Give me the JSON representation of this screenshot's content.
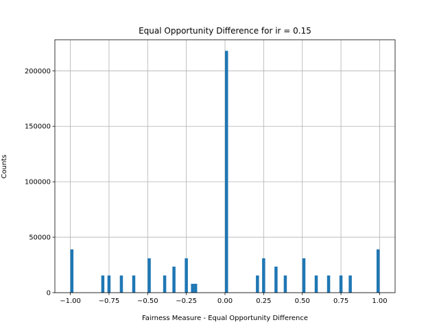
{
  "chart_data": {
    "type": "bar",
    "title": "Equal Opportunity Difference for ir = 0.15",
    "xlabel": "Fairness Measure - Equal Opportunity Difference",
    "ylabel": "Counts",
    "xlim": [
      -1.1,
      1.1
    ],
    "ylim": [
      0,
      228000
    ],
    "xticks": [
      -1.0,
      -0.75,
      -0.5,
      -0.25,
      0.0,
      0.25,
      0.5,
      0.75,
      1.0
    ],
    "xtick_labels": [
      "−1.00",
      "−0.75",
      "−0.50",
      "−0.25",
      "0.00",
      "0.25",
      "0.50",
      "0.75",
      "1.00"
    ],
    "yticks": [
      0,
      50000,
      100000,
      150000,
      200000
    ],
    "ytick_labels": [
      "0",
      "50000",
      "100000",
      "150000",
      "200000"
    ],
    "grid": true,
    "bin_width": 0.02,
    "bars": [
      {
        "x": -0.99,
        "count": 39000
      },
      {
        "x": -0.79,
        "count": 15500
      },
      {
        "x": -0.75,
        "count": 15500
      },
      {
        "x": -0.67,
        "count": 15500
      },
      {
        "x": -0.59,
        "count": 15500
      },
      {
        "x": -0.49,
        "count": 31000
      },
      {
        "x": -0.39,
        "count": 15500
      },
      {
        "x": -0.33,
        "count": 23500
      },
      {
        "x": -0.25,
        "count": 31000
      },
      {
        "x": -0.21,
        "count": 8000
      },
      {
        "x": -0.19,
        "count": 8000
      },
      {
        "x": 0.01,
        "count": 218000
      },
      {
        "x": 0.21,
        "count": 15500
      },
      {
        "x": 0.25,
        "count": 31000
      },
      {
        "x": 0.33,
        "count": 23500
      },
      {
        "x": 0.39,
        "count": 15500
      },
      {
        "x": 0.51,
        "count": 31000
      },
      {
        "x": 0.59,
        "count": 15500
      },
      {
        "x": 0.67,
        "count": 15500
      },
      {
        "x": 0.75,
        "count": 15500
      },
      {
        "x": 0.81,
        "count": 15500
      },
      {
        "x": 0.99,
        "count": 39000
      }
    ],
    "colors": {
      "bar": "#1f77b4",
      "grid": "#b0b0b0",
      "axis": "#000000"
    }
  }
}
